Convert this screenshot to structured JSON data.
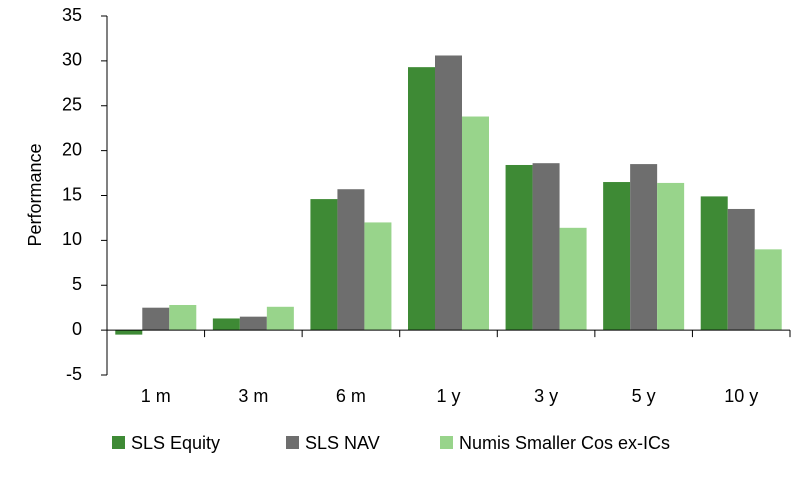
{
  "chart_data": {
    "type": "bar",
    "y_label": "Performance",
    "categories": [
      "1 m",
      "3 m",
      "6 m",
      "1 y",
      "3 y",
      "5 y",
      "10 y"
    ],
    "series": [
      {
        "name": "SLS Equity",
        "color": "#3e8a35",
        "values": [
          -0.5,
          1.3,
          14.6,
          29.3,
          18.4,
          16.5,
          14.9
        ]
      },
      {
        "name": "SLS NAV",
        "color": "#6e6e6e",
        "values": [
          2.5,
          1.5,
          15.7,
          30.6,
          18.6,
          18.5,
          13.5
        ]
      },
      {
        "name": "Numis Smaller Cos ex-ICs",
        "color": "#98d48b",
        "values": [
          2.8,
          2.6,
          12.0,
          23.8,
          11.4,
          16.4,
          9.0
        ]
      }
    ],
    "ylim": [
      -5,
      35
    ],
    "yticks": [
      -5,
      0,
      5,
      10,
      15,
      20,
      25,
      30,
      35
    ]
  }
}
